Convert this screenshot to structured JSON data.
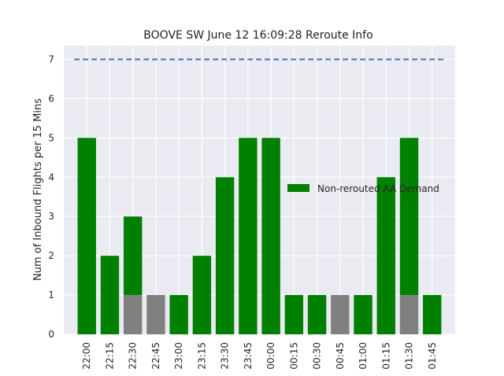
{
  "chart_data": {
    "type": "bar",
    "title": "BOOVE SW June 12 16:09:28 Reroute Info",
    "xlabel": "",
    "ylabel": "Num of Inbound Flights per 15 Mins",
    "categories": [
      "22:00",
      "22:15",
      "22:30",
      "22:45",
      "23:00",
      "23:15",
      "23:30",
      "23:45",
      "00:00",
      "00:15",
      "00:30",
      "00:45",
      "01:00",
      "01:15",
      "01:30",
      "01:45"
    ],
    "series": [
      {
        "name": "",
        "color": "#808080",
        "values": [
          0,
          0,
          1,
          1,
          0,
          0,
          0,
          0,
          0,
          0,
          0,
          1,
          0,
          0,
          1,
          0
        ]
      },
      {
        "name": "Non-rerouted AA Demand",
        "color": "#008000",
        "values": [
          5,
          2,
          2,
          0,
          1,
          2,
          4,
          5,
          5,
          1,
          1,
          0,
          1,
          4,
          4,
          1
        ]
      }
    ],
    "stacked": true,
    "yticks": [
      0,
      1,
      2,
      3,
      4,
      5,
      6,
      7
    ],
    "ylim": [
      0,
      7.35
    ],
    "reference_line": {
      "value": 7,
      "color": "#4c72b0",
      "style": "dashed"
    },
    "grid": true,
    "background": "#eaeaf2",
    "legend_position": "center-right"
  }
}
